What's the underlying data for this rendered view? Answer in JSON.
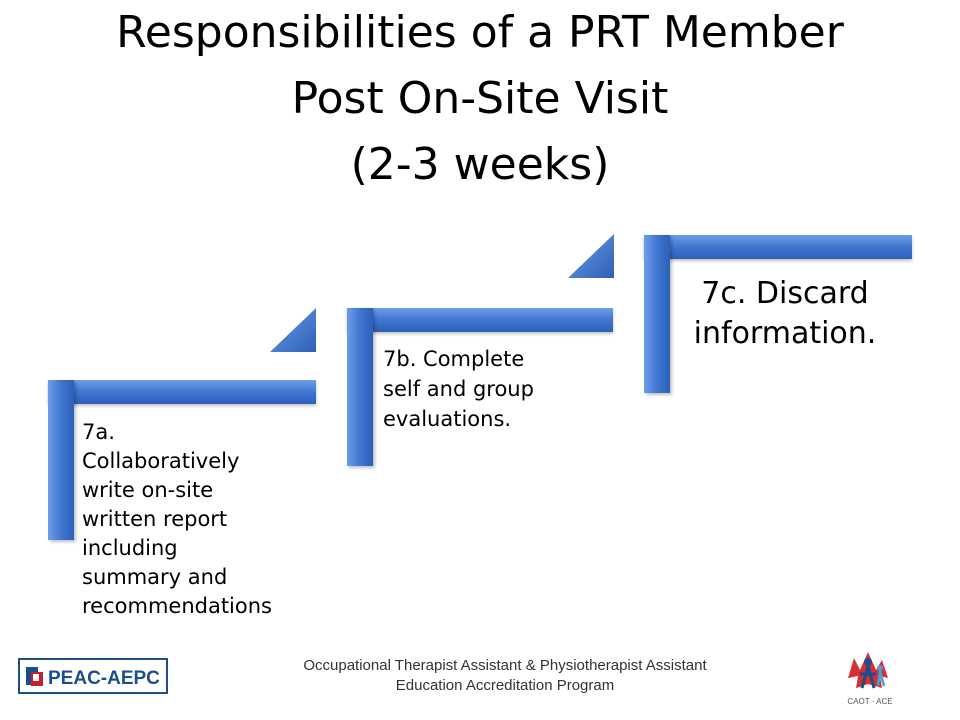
{
  "title": {
    "line1": "Responsibilities of a PRT Member",
    "line2": "Post On-Site Visit",
    "line3": "(2-3 weeks)"
  },
  "steps": [
    {
      "id": "7a",
      "lines": [
        "7a.",
        "Collaboratively",
        "write on-site",
        "written report",
        "including",
        "summary and",
        "recommendations"
      ]
    },
    {
      "id": "7b",
      "lines": [
        "7b. Complete",
        "self and group",
        "evaluations."
      ]
    },
    {
      "id": "7c",
      "lines": [
        "7c. Discard",
        "information."
      ]
    }
  ],
  "footer": {
    "line1": "Occupational Therapist Assistant & Physiotherapist Assistant",
    "line2": "Education Accreditation Program"
  },
  "logos": {
    "left": "PEAC-AEPC",
    "right": "CAOT · ACE"
  },
  "colors": {
    "step_blue": "#3f76d1",
    "logo_blue": "#1b4e8a",
    "logo_red": "#c8202a"
  }
}
